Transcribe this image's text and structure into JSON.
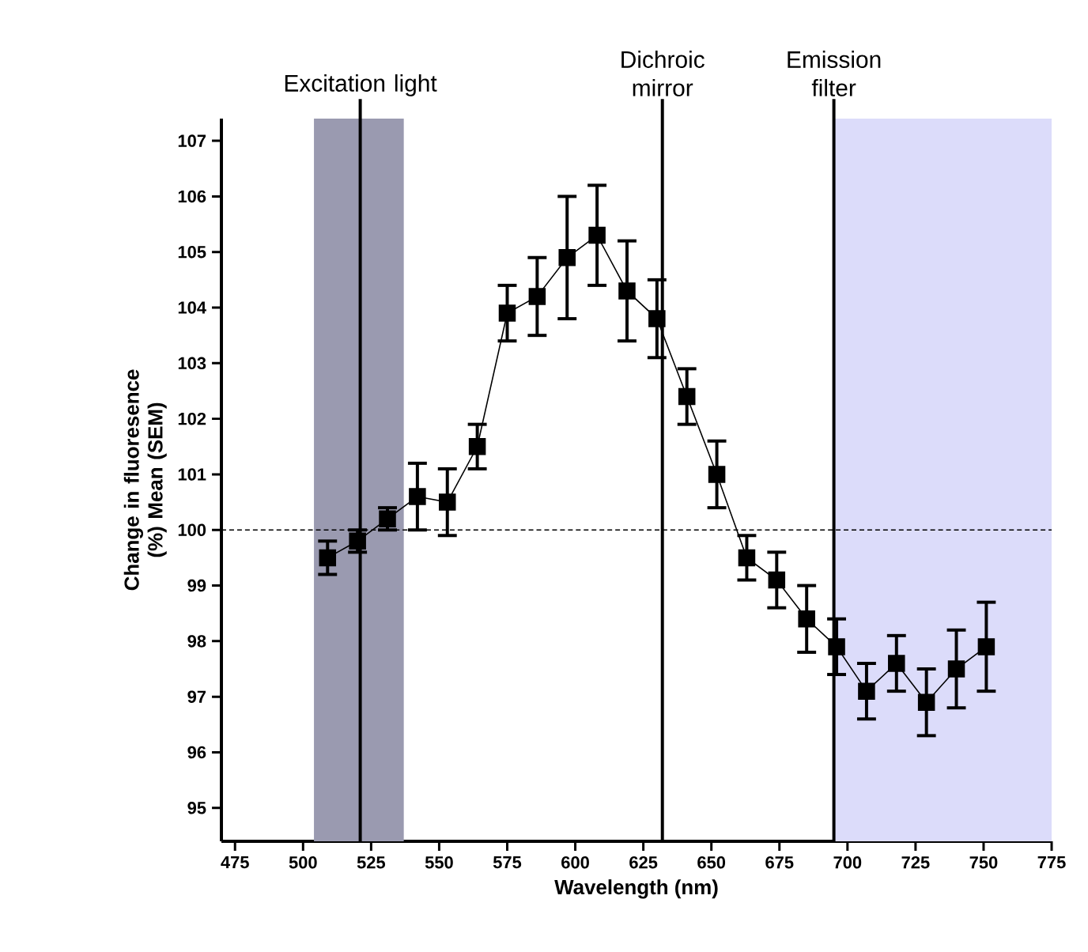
{
  "chart_data": {
    "type": "line",
    "xlabel": "Wavelength (nm)",
    "ylabel": "Change in fluoresence (%) Mean (SEM)",
    "xlim": [
      470,
      775
    ],
    "ylim": [
      94.4,
      107.4
    ],
    "xticks": [
      475,
      500,
      525,
      550,
      575,
      600,
      625,
      650,
      675,
      700,
      725,
      750,
      775
    ],
    "yticks": [
      95,
      96,
      97,
      98,
      99,
      100,
      101,
      102,
      103,
      104,
      105,
      106,
      107
    ],
    "grid": false,
    "marker": "square",
    "line_style": "solid",
    "series": [
      {
        "color": "#000000",
        "x": [
          509,
          520,
          531,
          542,
          553,
          564,
          575,
          586,
          597,
          608,
          619,
          630,
          641,
          652,
          663,
          674,
          685,
          696,
          707,
          718,
          729,
          740,
          751
        ],
        "values": [
          99.5,
          99.8,
          100.2,
          100.6,
          100.5,
          101.5,
          103.9,
          104.2,
          104.9,
          105.3,
          104.3,
          103.8,
          102.4,
          101.0,
          99.5,
          99.1,
          98.4,
          97.9,
          97.1,
          97.6,
          96.9,
          97.5,
          97.9
        ],
        "errors": [
          0.3,
          0.2,
          0.2,
          0.6,
          0.6,
          0.4,
          0.5,
          0.7,
          1.1,
          0.9,
          0.9,
          0.7,
          0.5,
          0.6,
          0.4,
          0.5,
          0.6,
          0.5,
          0.5,
          0.5,
          0.6,
          0.7,
          0.8
        ]
      }
    ],
    "ref_lines": [
      {
        "axis": "y",
        "value": 100,
        "line_style": "dashed",
        "color": "#000000"
      },
      {
        "axis": "x",
        "value": 521,
        "label": "Excitation light",
        "color": "#000000",
        "line_style": "solid"
      },
      {
        "axis": "x",
        "value": 632,
        "label": "Dichroic mirror",
        "color": "#000000",
        "line_style": "solid"
      },
      {
        "axis": "x",
        "value": 695,
        "label": "Emission filter",
        "color": "#000000",
        "line_style": "solid"
      }
    ],
    "bands": [
      {
        "axis": "x",
        "from": 504,
        "to": 537,
        "color": "#9a9ab0"
      },
      {
        "axis": "x",
        "from": 695,
        "to": 775,
        "color": "#dcdcfa"
      }
    ]
  }
}
